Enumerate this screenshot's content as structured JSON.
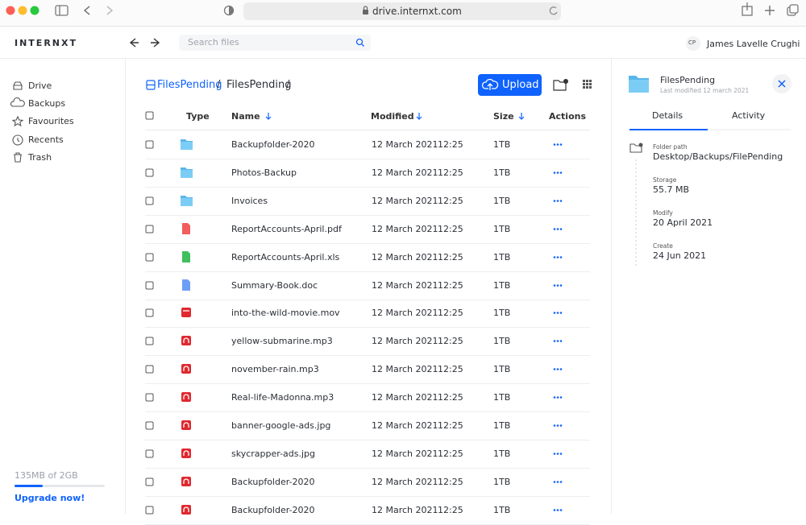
{
  "browser": {
    "url": "drive.internxt.com"
  },
  "header": {
    "logo": "INTERNXT",
    "search_placeholder": "Search files",
    "user_initials": "CP",
    "user_name": "James Lavelle Crughi"
  },
  "sidebar": {
    "nav": [
      "Drive",
      "Backups",
      "Favourites",
      "Recents",
      "Trash"
    ],
    "storage": "135MB of 2GB",
    "upgrade": "Upgrade now!"
  },
  "breadcrumb": {
    "items": [
      "FilesPending",
      "FilesPending"
    ],
    "separator": "/"
  },
  "toolbar": {
    "upload": "Upload"
  },
  "table": {
    "headers": [
      "Type",
      "Name",
      "Modified",
      "Size",
      "Actions"
    ],
    "rows": [
      {
        "name": "Backupfolder-2020",
        "date": "12 March 2021",
        "time": "12:25",
        "size": "1TB"
      },
      {
        "name": "Photos-Backup",
        "date": "12 March 2021",
        "time": "12:25",
        "size": "1TB"
      },
      {
        "name": "Invoices",
        "date": "12 March 2021",
        "time": "12:25",
        "size": "1TB"
      },
      {
        "name": "ReportAccounts-April.pdf",
        "date": "12 March 2021",
        "time": "12:25",
        "size": "1TB"
      },
      {
        "name": "ReportAccounts-April.xls",
        "date": "12 March 2021",
        "time": "12:25",
        "size": "1TB"
      },
      {
        "name": "Summary-Book.doc",
        "date": "12 March 2021",
        "time": "12:25",
        "size": "1TB"
      },
      {
        "name": "into-the-wild-movie.mov",
        "date": "12 March 2021",
        "time": "12:25",
        "size": "1TB"
      },
      {
        "name": "yellow-submarine.mp3",
        "date": "12 March 2021",
        "time": "12:25",
        "size": "1TB"
      },
      {
        "name": "november-rain.mp3",
        "date": "12 March 2021",
        "time": "12:25",
        "size": "1TB"
      },
      {
        "name": "Real-life-Madonna.mp3",
        "date": "12 March 2021",
        "time": "12:25",
        "size": "1TB"
      },
      {
        "name": "banner-google-ads.jpg",
        "date": "12 March 2021",
        "time": "12:25",
        "size": "1TB"
      },
      {
        "name": "skycrapper-ads.jpg",
        "date": "12 March 2021",
        "time": "12:25",
        "size": "1TB"
      },
      {
        "name": "Backupfolder-2020",
        "date": "12 March 2021",
        "time": "12:25",
        "size": "1TB"
      },
      {
        "name": "Backupfolder-2020",
        "date": "12 March 2021",
        "time": "12:25",
        "size": "1TB"
      }
    ]
  },
  "details": {
    "title": "FilesPending",
    "subtitle": "Last modified 12 march 2021",
    "tabs": [
      "Details",
      "Activity"
    ],
    "fields": [
      {
        "label": "Folder path",
        "value": "Desktop/Backups/FilePending"
      },
      {
        "label": "Storage",
        "value": "55.7 MB"
      },
      {
        "label": "Modify",
        "value": "20 April 2021"
      },
      {
        "label": "Create",
        "value": "24 Jun 2021"
      }
    ]
  }
}
